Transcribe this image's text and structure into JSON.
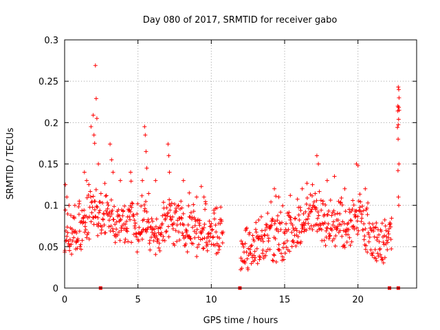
{
  "chart_data": {
    "type": "scatter",
    "title": "Day 080 of 2017, SRMTID for receiver gabo",
    "xlabel": "GPS time / hours",
    "ylabel": "SRMTID / TECUs",
    "xlim": [
      0,
      24
    ],
    "ylim": [
      0,
      0.3
    ],
    "x_ticks": [
      0,
      5,
      10,
      15,
      20
    ],
    "x_tick_labels": [
      "0",
      "5",
      "10",
      "15",
      "20"
    ],
    "y_ticks": [
      0,
      0.05,
      0.1,
      0.15,
      0.2,
      0.25,
      0.3
    ],
    "y_tick_labels": [
      "0",
      "0.05",
      "0.1",
      "0.15",
      "0.2",
      "0.25",
      "0.3"
    ],
    "grid": true,
    "marker": "+",
    "color": "#ff0000",
    "zero_markers_x": [
      2.45,
      11.95,
      22.15,
      22.75
    ],
    "series": [
      {
        "name": "SRMTID",
        "segments": [
          {
            "x_start": 0.0,
            "x_end": 10.8,
            "step": 0.025,
            "base": [
              [
                0.0,
                0.065
              ],
              [
                0.5,
                0.063
              ],
              [
                1.0,
                0.072
              ],
              [
                1.5,
                0.082
              ],
              [
                1.9,
                0.098
              ],
              [
                2.3,
                0.082
              ],
              [
                2.7,
                0.085
              ],
              [
                3.2,
                0.09
              ],
              [
                3.7,
                0.072
              ],
              [
                4.3,
                0.078
              ],
              [
                5.0,
                0.075
              ],
              [
                5.5,
                0.083
              ],
              [
                6.0,
                0.07
              ],
              [
                6.6,
                0.068
              ],
              [
                7.2,
                0.085
              ],
              [
                7.8,
                0.08
              ],
              [
                8.4,
                0.072
              ],
              [
                9.0,
                0.068
              ],
              [
                9.6,
                0.073
              ],
              [
                10.2,
                0.07
              ],
              [
                10.8,
                0.072
              ]
            ]
          },
          {
            "x_start": 12.0,
            "x_end": 22.3,
            "step": 0.025,
            "base": [
              [
                12.0,
                0.045
              ],
              [
                12.5,
                0.048
              ],
              [
                13.0,
                0.052
              ],
              [
                13.5,
                0.058
              ],
              [
                14.0,
                0.062
              ],
              [
                14.5,
                0.058
              ],
              [
                15.0,
                0.062
              ],
              [
                15.5,
                0.068
              ],
              [
                16.0,
                0.075
              ],
              [
                16.5,
                0.082
              ],
              [
                17.0,
                0.088
              ],
              [
                17.5,
                0.084
              ],
              [
                18.0,
                0.08
              ],
              [
                18.5,
                0.078
              ],
              [
                19.0,
                0.074
              ],
              [
                19.5,
                0.08
              ],
              [
                20.0,
                0.088
              ],
              [
                20.5,
                0.068
              ],
              [
                21.0,
                0.058
              ],
              [
                21.5,
                0.055
              ],
              [
                22.0,
                0.06
              ],
              [
                22.3,
                0.062
              ]
            ]
          },
          {
            "x_start": 22.7,
            "x_end": 22.8,
            "step": 0.02,
            "base": [
              [
                22.7,
                0.2
              ],
              [
                22.8,
                0.21
              ]
            ]
          }
        ],
        "peaks": [
          [
            0.05,
            0.125
          ],
          [
            0.15,
            0.11
          ],
          [
            0.3,
            0.1
          ],
          [
            0.7,
            0.1
          ],
          [
            1.0,
            0.105
          ],
          [
            1.35,
            0.14
          ],
          [
            1.5,
            0.13
          ],
          [
            1.8,
            0.195
          ],
          [
            1.95,
            0.209
          ],
          [
            2.0,
            0.185
          ],
          [
            2.05,
            0.175
          ],
          [
            2.1,
            0.269
          ],
          [
            2.15,
            0.229
          ],
          [
            2.2,
            0.205
          ],
          [
            2.3,
            0.15
          ],
          [
            3.1,
            0.174
          ],
          [
            3.2,
            0.155
          ],
          [
            3.3,
            0.14
          ],
          [
            3.8,
            0.13
          ],
          [
            4.5,
            0.14
          ],
          [
            5.3,
            0.13
          ],
          [
            5.45,
            0.195
          ],
          [
            5.5,
            0.185
          ],
          [
            5.55,
            0.165
          ],
          [
            5.6,
            0.145
          ],
          [
            6.2,
            0.13
          ],
          [
            7.05,
            0.174
          ],
          [
            7.1,
            0.16
          ],
          [
            7.15,
            0.14
          ],
          [
            8.1,
            0.13
          ],
          [
            8.5,
            0.115
          ],
          [
            9.0,
            0.11
          ],
          [
            9.5,
            0.11
          ],
          [
            14.3,
            0.12
          ],
          [
            14.6,
            0.11
          ],
          [
            16.2,
            0.12
          ],
          [
            16.9,
            0.125
          ],
          [
            17.2,
            0.16
          ],
          [
            17.3,
            0.15
          ],
          [
            17.9,
            0.13
          ],
          [
            18.4,
            0.135
          ],
          [
            19.1,
            0.12
          ],
          [
            19.9,
            0.15
          ],
          [
            20.0,
            0.148
          ],
          [
            20.5,
            0.12
          ],
          [
            22.75,
            0.243
          ],
          [
            22.78,
            0.24
          ],
          [
            22.8,
            0.23
          ],
          [
            22.72,
            0.22
          ],
          [
            22.77,
            0.204
          ],
          [
            22.74,
            0.18
          ],
          [
            22.79,
            0.15
          ],
          [
            22.73,
            0.142
          ],
          [
            22.76,
            0.11
          ],
          [
            22.78,
            0.1
          ]
        ]
      }
    ]
  }
}
